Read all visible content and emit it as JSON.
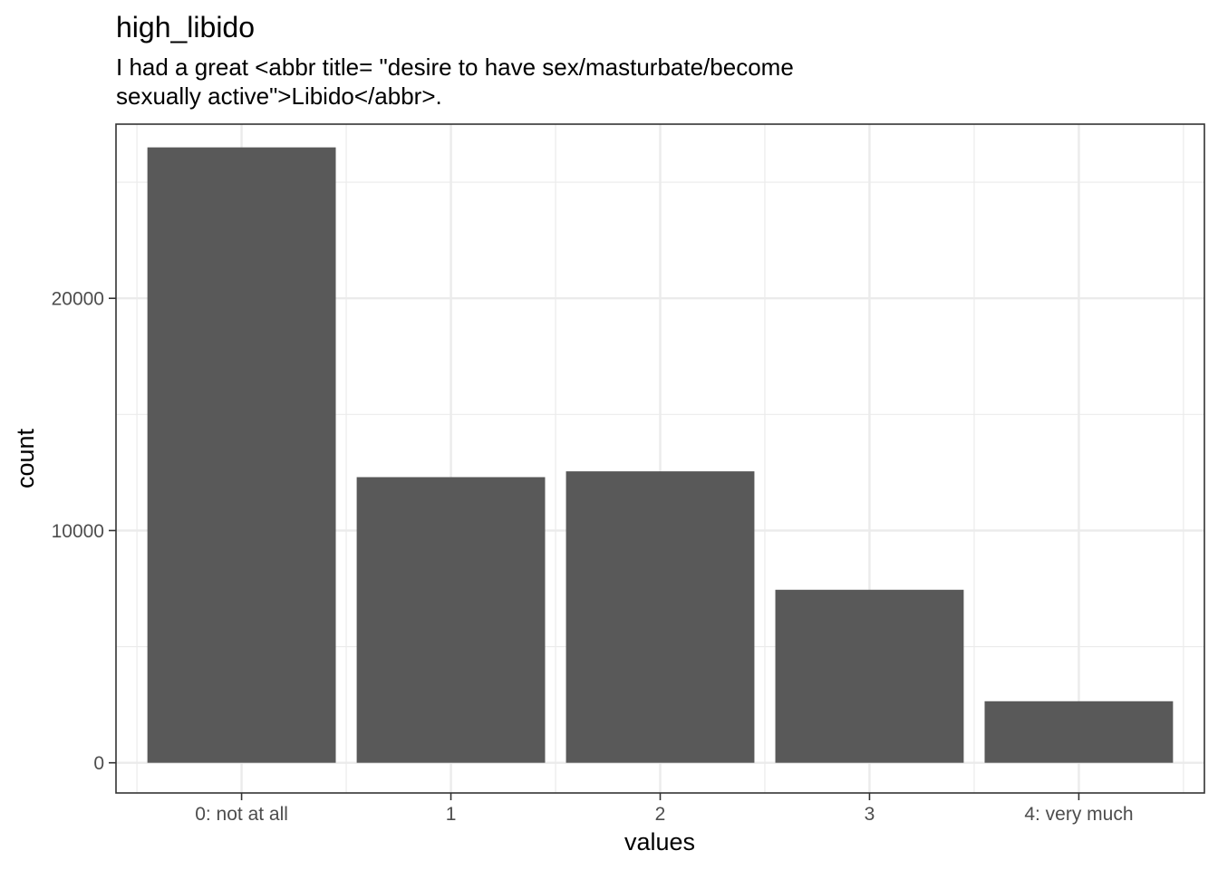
{
  "chart_data": {
    "type": "bar",
    "title": "high_libido",
    "subtitle_lines": [
      "I had a great <abbr title= \"desire to have sex/masturbate/become",
      "sexually active\">Libido</abbr>."
    ],
    "xlabel": "values",
    "ylabel": "count",
    "categories": [
      "0: not at all",
      "1",
      "2",
      "3",
      "4: very much"
    ],
    "values": [
      26500,
      12300,
      12550,
      7450,
      2650
    ],
    "ylim": [
      -1300,
      27500
    ],
    "yticks": [
      0,
      10000,
      20000
    ],
    "ytick_labels": [
      "0",
      "10000",
      "20000"
    ],
    "grid": true,
    "bar_color": "#595959",
    "panel_border_color": "#333333",
    "grid_color": "#ebebeb"
  }
}
